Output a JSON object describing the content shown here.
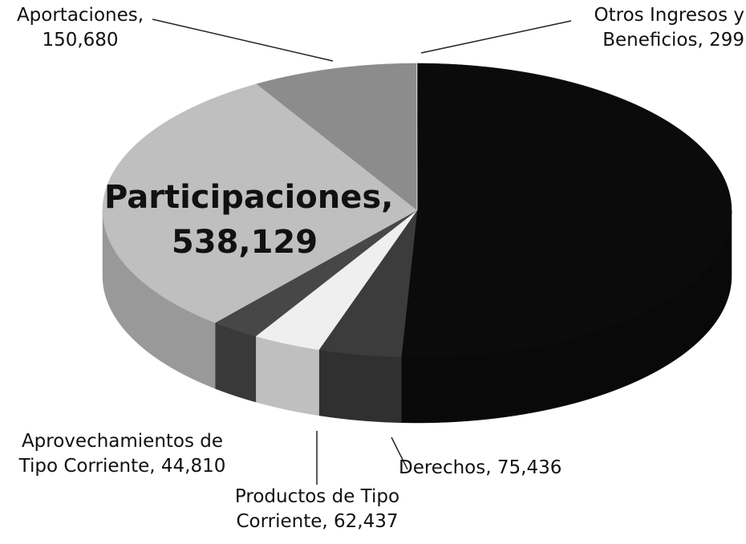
{
  "chart_data": {
    "type": "pie",
    "categories": [
      null,
      "Derechos,",
      "Productos de Tipo Corriente,",
      "Aprovechamientos de Tipo Corriente,",
      "Participaciones,",
      "Aportaciones,",
      "Otros Ingresos y Beneficios,"
    ],
    "values": [
      900000,
      75436,
      62437,
      44810,
      538129,
      150680,
      299
    ],
    "value_labels": [
      null,
      "75,436",
      "62,437",
      "44,810",
      "538,129",
      "150,680",
      "299"
    ],
    "colors": [
      "#0b0b0b",
      "#3c3c3c",
      "#efefef",
      "#474747",
      "#bfbfbf",
      "#8c8c8c",
      "#ffffff"
    ]
  }
}
